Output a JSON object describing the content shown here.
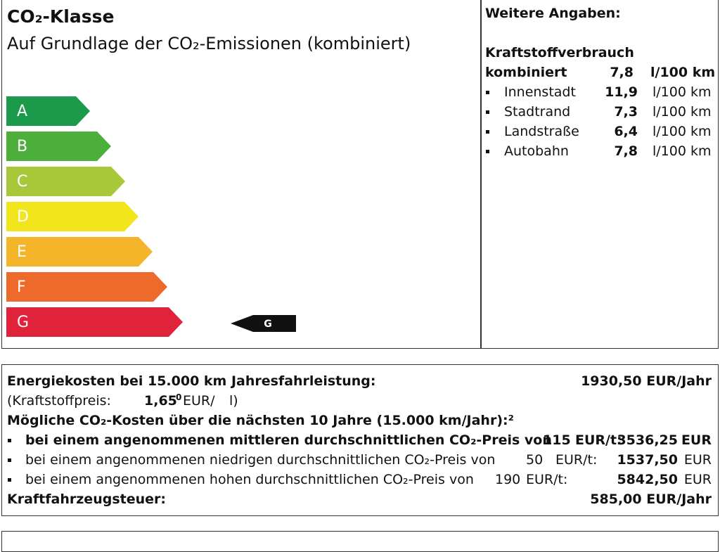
{
  "header": {
    "title": "CO₂-Klasse",
    "subtitle": "Auf Grundlage der CO₂-Emissionen (kombiniert)"
  },
  "classes": [
    "A",
    "B",
    "C",
    "D",
    "E",
    "F",
    "G"
  ],
  "indicator": "G",
  "details": {
    "title": "Weitere Angaben:",
    "consumption_title": "Kraftstoffverbrauch",
    "combined": {
      "label": "kombiniert",
      "value": "7,8",
      "unit": "l/100 km"
    },
    "items": [
      {
        "label": "Innenstadt",
        "value": "11,9",
        "unit": "l/100 km"
      },
      {
        "label": "Stadtrand",
        "value": "7,3",
        "unit": "l/100 km"
      },
      {
        "label": "Landstraße",
        "value": "6,4",
        "unit": "l/100 km"
      },
      {
        "label": "Autobahn",
        "value": "7,8",
        "unit": "l/100 km"
      }
    ]
  },
  "costs": {
    "energy": {
      "label": "Energiekosten bei 15.000 km Jahresfahrleistung:",
      "value": "1930,50 EUR/Jahr"
    },
    "fuel_price": {
      "label": "(Kraftstoffpreis:",
      "value": "1,65",
      "sup": "0",
      "unit": "EUR/",
      "tail": "l)"
    },
    "co2_title": "Mögliche CO₂-Kosten über die nächsten 10 Jahre (15.000 km/Jahr):²",
    "co2_rows": [
      {
        "label": "bei einem angenommenen mittleren durchschnittlichen CO₂-Preis von",
        "price": "115",
        "price_unit": "EUR/t:",
        "value": "3536,25",
        "unit": "EUR"
      },
      {
        "label": "bei einem angenommenen niedrigen durchschnittlichen CO₂-Preis von",
        "price": "50",
        "price_unit": "EUR/t:",
        "value": "1537,50",
        "unit": "EUR"
      },
      {
        "label": "bei einem angenommenen hohen durchschnittlichen CO₂-Preis von",
        "price": "190",
        "price_unit": "EUR/t:",
        "value": "5842,50",
        "unit": "EUR"
      }
    ],
    "tax": {
      "label": "Kraftfahrzeugsteuer:",
      "value": "585,00 EUR/Jahr"
    }
  }
}
